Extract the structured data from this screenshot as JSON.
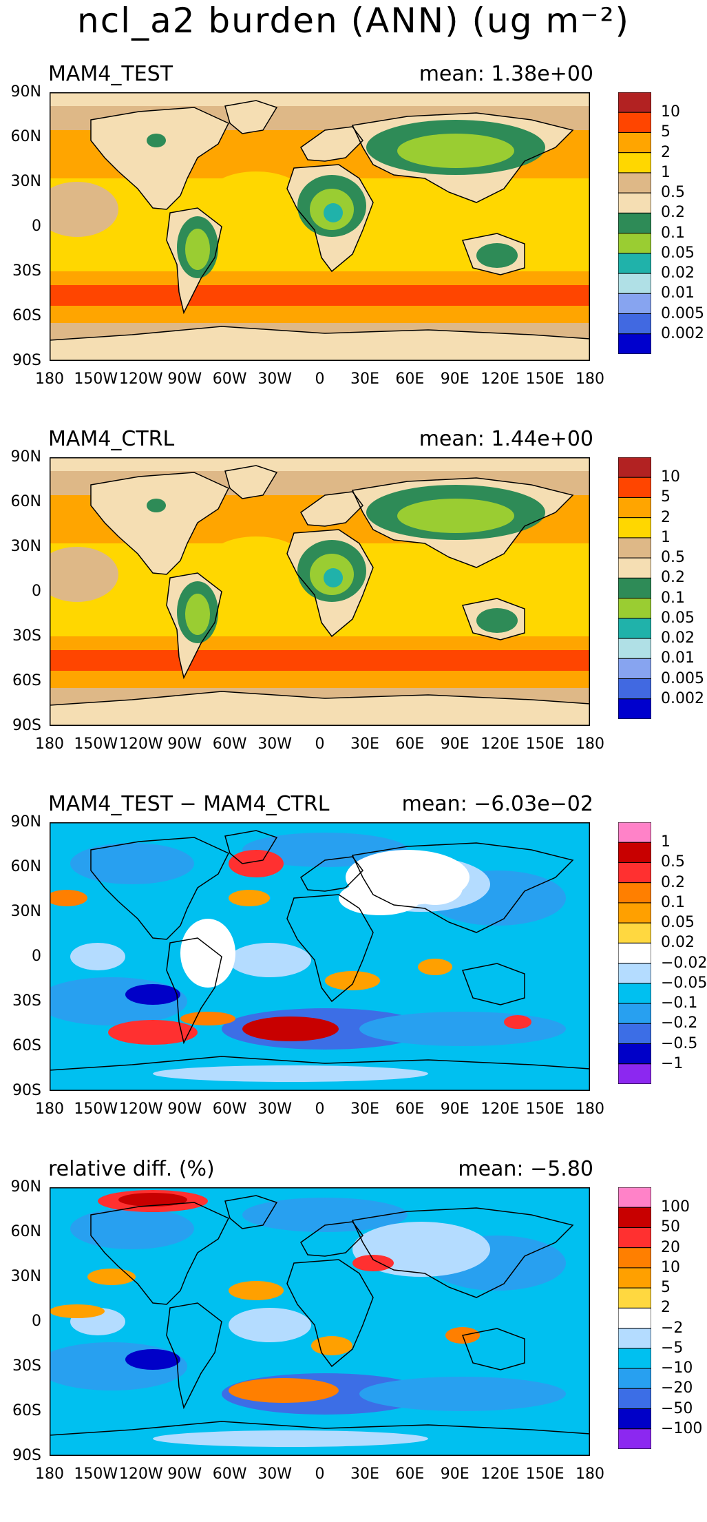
{
  "figure_title": "ncl_a2 burden (ANN) (ug m⁻²)",
  "lat_labels": [
    "90N",
    "60N",
    "30N",
    "0",
    "30S",
    "60S",
    "90S"
  ],
  "lon_labels": [
    "180",
    "150W",
    "120W",
    "90W",
    "60W",
    "30W",
    "0",
    "30E",
    "60E",
    "90E",
    "120E",
    "150E",
    "180"
  ],
  "panels": [
    {
      "title": "MAM4_TEST",
      "mean": "mean:  1.38e+00",
      "kind": "burden",
      "colorbar": {
        "colors": [
          "#b22222",
          "#ff4500",
          "#ffa500",
          "#ffd700",
          "#deb887",
          "#f5deb3",
          "#2e8b57",
          "#9acd32",
          "#20b2aa",
          "#b0e0e6",
          "#87a4f0",
          "#4169e1",
          "#0000cd"
        ],
        "labels": [
          "10",
          "5",
          "2",
          "1",
          "0.5",
          "0.2",
          "0.1",
          "0.05",
          "0.02",
          "0.01",
          "0.005",
          "0.002"
        ]
      }
    },
    {
      "title": "MAM4_CTRL",
      "mean": "mean:  1.44e+00",
      "kind": "burden",
      "colorbar": {
        "colors": [
          "#b22222",
          "#ff4500",
          "#ffa500",
          "#ffd700",
          "#deb887",
          "#f5deb3",
          "#2e8b57",
          "#9acd32",
          "#20b2aa",
          "#b0e0e6",
          "#87a4f0",
          "#4169e1",
          "#0000cd"
        ],
        "labels": [
          "10",
          "5",
          "2",
          "1",
          "0.5",
          "0.2",
          "0.1",
          "0.05",
          "0.02",
          "0.01",
          "0.005",
          "0.002"
        ]
      }
    },
    {
      "title": "MAM4_TEST − MAM4_CTRL",
      "mean": "mean: −6.03e−02",
      "kind": "diff",
      "colorbar": {
        "colors": [
          "#ff82c8",
          "#c80000",
          "#ff3030",
          "#ff7f00",
          "#ffa000",
          "#ffd840",
          "#ffffff",
          "#b4dcff",
          "#00c0f0",
          "#28a0f0",
          "#3c6ee6",
          "#0000c8",
          "#8c28f0"
        ],
        "labels": [
          "1",
          "0.5",
          "0.2",
          "0.1",
          "0.05",
          "0.02",
          "−0.02",
          "−0.05",
          "−0.1",
          "−0.2",
          "−0.5",
          "−1"
        ]
      }
    },
    {
      "title": "relative diff. (%)",
      "mean": "mean: −5.80",
      "kind": "rel",
      "colorbar": {
        "colors": [
          "#ff82c8",
          "#c80000",
          "#ff3030",
          "#ff7f00",
          "#ffa000",
          "#ffd840",
          "#ffffff",
          "#b4dcff",
          "#00c0f0",
          "#28a0f0",
          "#3c6ee6",
          "#0000c8",
          "#8c28f0"
        ],
        "labels": [
          "100",
          "50",
          "20",
          "10",
          "5",
          "2",
          "−2",
          "−5",
          "−10",
          "−20",
          "−50",
          "−100"
        ]
      }
    }
  ]
}
